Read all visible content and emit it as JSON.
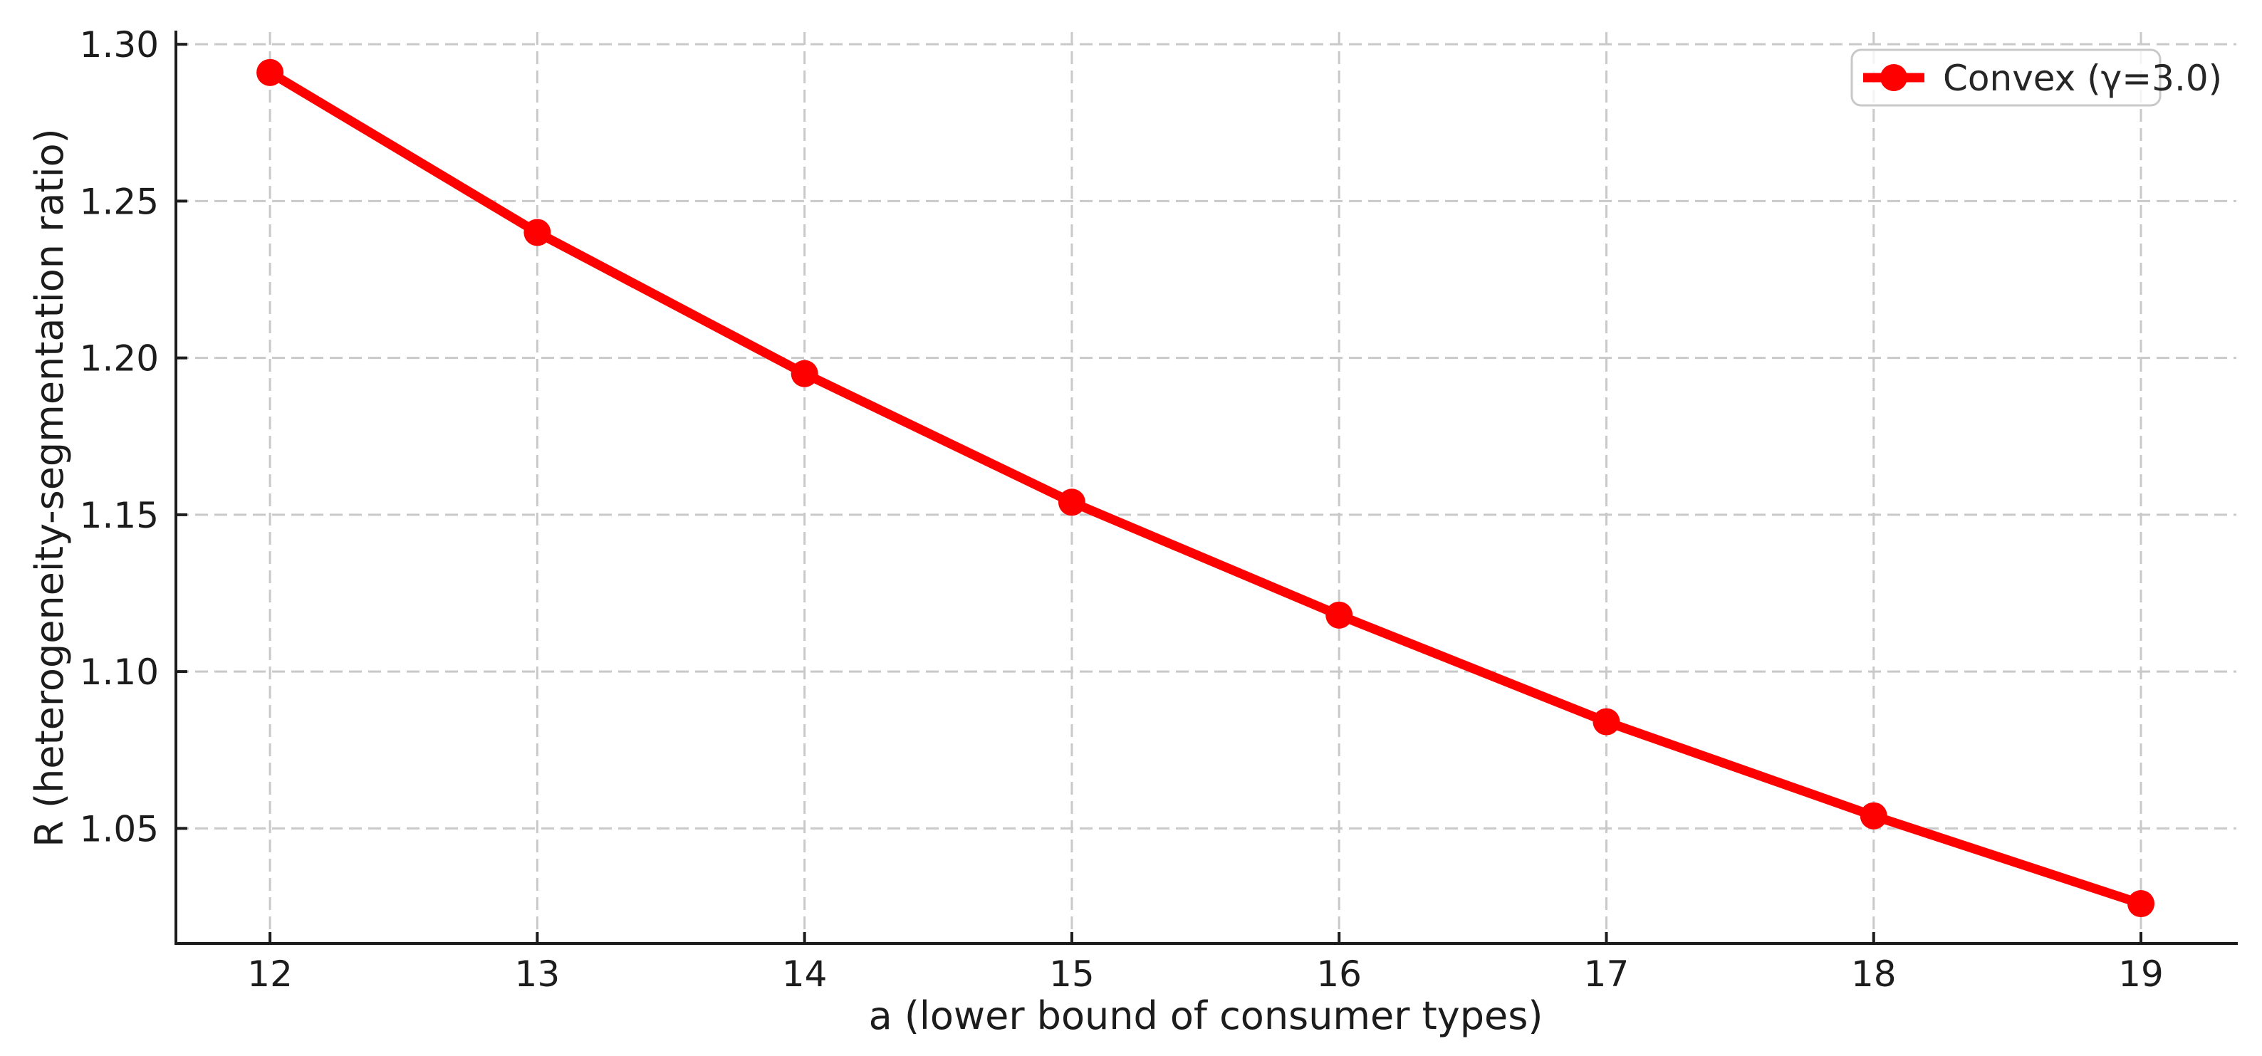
{
  "chart_data": {
    "type": "line",
    "title": "",
    "xlabel": "a (lower bound of consumer types)",
    "ylabel": "R (heterogeneity-segmentation ratio)",
    "x": [
      12,
      13,
      14,
      15,
      16,
      17,
      18,
      19
    ],
    "series": [
      {
        "name": "Convex (γ=3.0)",
        "values": [
          1.291,
          1.24,
          1.195,
          1.154,
          1.118,
          1.084,
          1.054,
          1.026
        ],
        "color": "#ff0000",
        "marker": "circle"
      }
    ],
    "xticks": [
      12,
      13,
      14,
      15,
      16,
      17,
      18,
      19
    ],
    "yticks": [
      1.05,
      1.1,
      1.15,
      1.2,
      1.25,
      1.3
    ],
    "ytick_labels": [
      "1.05",
      "1.10",
      "1.15",
      "1.20",
      "1.25",
      "1.30"
    ],
    "xlim": [
      11.648,
      19.357
    ],
    "ylim": [
      1.0133,
      1.3039
    ],
    "grid": true,
    "grid_style": "dashed",
    "grid_color": "#c9c9c9",
    "tick_direction": "in",
    "legend_position": "upper right",
    "line_color": "#ff0000",
    "axis_color": "#1c1c1c",
    "background_color": "#ffffff"
  }
}
